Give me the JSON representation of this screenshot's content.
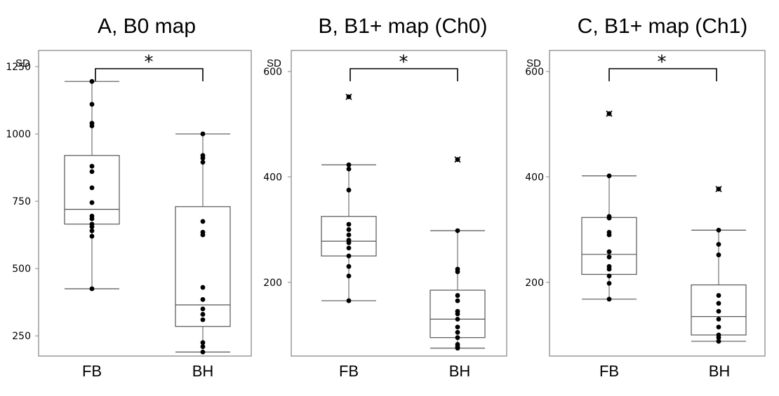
{
  "chart_data": [
    {
      "type": "box",
      "title": "A, B0 map",
      "ylabel": "SD",
      "categories": [
        "FB",
        "BH"
      ],
      "yticks": [
        250,
        500,
        750,
        1000,
        1250
      ],
      "ylim": [
        175,
        1310
      ],
      "significance": "*",
      "boxes": [
        {
          "name": "FB",
          "min": 425,
          "q1": 665,
          "median": 720,
          "q3": 920,
          "max": 1195,
          "points": [
            1195,
            1110,
            1040,
            1030,
            880,
            860,
            800,
            745,
            695,
            685,
            665,
            655,
            640,
            620,
            425
          ],
          "outliers": []
        },
        {
          "name": "BH",
          "min": 190,
          "q1": 285,
          "median": 365,
          "q3": 730,
          "max": 1000,
          "points": [
            1000,
            920,
            910,
            895,
            675,
            635,
            625,
            430,
            385,
            350,
            330,
            310,
            225,
            210,
            190
          ],
          "outliers": []
        }
      ]
    },
    {
      "type": "box",
      "title": "B, B1+ map (Ch0)",
      "ylabel": "SD",
      "categories": [
        "FB",
        "BH"
      ],
      "yticks": [
        200,
        400,
        600
      ],
      "ylim": [
        60,
        640
      ],
      "significance": "*",
      "boxes": [
        {
          "name": "FB",
          "min": 165,
          "q1": 250,
          "median": 278,
          "q3": 325,
          "max": 423,
          "points": [
            423,
            415,
            375,
            310,
            300,
            290,
            280,
            275,
            265,
            250,
            230,
            212,
            165
          ],
          "outliers": [
            552
          ]
        },
        {
          "name": "BH",
          "min": 75,
          "q1": 95,
          "median": 130,
          "q3": 185,
          "max": 298,
          "points": [
            298,
            225,
            220,
            175,
            165,
            145,
            140,
            130,
            115,
            105,
            95,
            82,
            78,
            75
          ],
          "outliers": [
            433
          ]
        }
      ]
    },
    {
      "type": "box",
      "title": "C, B1+ map (Ch1)",
      "ylabel": "SD",
      "categories": [
        "FB",
        "BH"
      ],
      "yticks": [
        200,
        400,
        600
      ],
      "ylim": [
        60,
        640
      ],
      "significance": "*",
      "boxes": [
        {
          "name": "FB",
          "min": 168,
          "q1": 215,
          "median": 253,
          "q3": 323,
          "max": 402,
          "points": [
            402,
            325,
            322,
            295,
            290,
            258,
            248,
            230,
            225,
            212,
            198,
            168
          ],
          "outliers": [
            520
          ]
        },
        {
          "name": "BH",
          "min": 88,
          "q1": 100,
          "median": 135,
          "q3": 195,
          "max": 299,
          "points": [
            299,
            272,
            252,
            175,
            160,
            145,
            130,
            115,
            100,
            95,
            88
          ],
          "outliers": [
            377
          ]
        }
      ]
    }
  ]
}
